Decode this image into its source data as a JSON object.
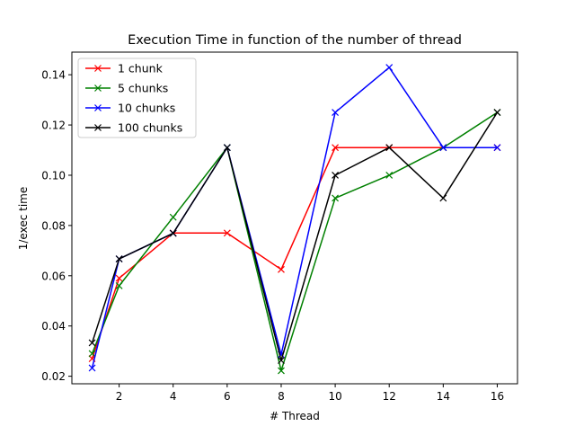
{
  "chart_data": {
    "type": "line",
    "title": "Execution Time in function of the number of thread",
    "xlabel": "# Thread",
    "ylabel": "1/exec time",
    "x": [
      1,
      2,
      4,
      6,
      8,
      10,
      12,
      14,
      16
    ],
    "xticks": [
      "2",
      "4",
      "6",
      "8",
      "10",
      "12",
      "14",
      "16"
    ],
    "yticks": [
      "0.02",
      "0.04",
      "0.06",
      "0.08",
      "0.10",
      "0.12",
      "0.14"
    ],
    "xlim": [
      0.25,
      16.75
    ],
    "ylim": [
      0.017,
      0.149
    ],
    "grid": false,
    "legend_position": "top-left",
    "marker": "x",
    "series": [
      {
        "name": "1 chunk",
        "color": "#ff0000",
        "values": [
          0.027,
          0.059,
          0.077,
          0.077,
          0.0625,
          0.111,
          0.111,
          0.111,
          0.111
        ]
      },
      {
        "name": "5 chunks",
        "color": "#008000",
        "values": [
          0.029,
          0.056,
          0.0833,
          0.111,
          0.0222,
          0.0909,
          0.1,
          0.111,
          0.125
        ]
      },
      {
        "name": "10 chunks",
        "color": "#0000ff",
        "values": [
          0.0233,
          0.0667,
          0.0769,
          0.111,
          0.0286,
          0.125,
          0.1429,
          0.111,
          0.111
        ]
      },
      {
        "name": "100 chunks",
        "color": "#000000",
        "values": [
          0.0333,
          0.0667,
          0.0769,
          0.111,
          0.0263,
          0.1,
          0.111,
          0.0909,
          0.125
        ]
      }
    ]
  }
}
